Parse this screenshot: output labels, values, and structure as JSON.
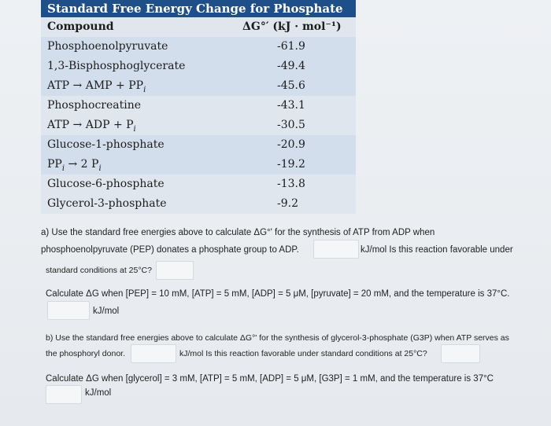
{
  "table": {
    "title": "Standard Free Energy Change for Phosphate Hydrolysis",
    "col_compound": "Compound",
    "col_value": "ΔG°′ (kJ · mol⁻¹)",
    "rows": [
      {
        "compound": "Phosphoenolpyruvate",
        "value": "-61.9"
      },
      {
        "compound": "1,3-Bisphosphoglycerate",
        "value": "-49.4"
      },
      {
        "compound": "ATP → AMP + PP",
        "sub": "i",
        "value": "-45.6"
      },
      {
        "compound": "Phosphocreatine",
        "value": "-43.1"
      },
      {
        "compound": "ATP → ADP + P",
        "sub": "i",
        "value": "-30.5"
      },
      {
        "compound": "Glucose-1-phosphate",
        "value": "-20.9"
      },
      {
        "compound": "PP",
        "sub": "i",
        "rest": " → 2 P",
        "sub2": "i",
        "value": "-19.2"
      },
      {
        "compound": "Glucose-6-phosphate",
        "value": "-13.8"
      },
      {
        "compound": "Glycerol-3-phosphate",
        "value": "-9.2"
      }
    ]
  },
  "question_a": {
    "line1": "a) Use the standard free energies above to calculate ΔG°' for the synthesis of ATP from ADP when",
    "line2": "phosphoenolpyruvate (PEP) donates a phosphate group to ADP.",
    "line2_unit": "kJ/mol Is this reaction favorable under",
    "line3": "standard conditions at 25°C?",
    "line4": "Calculate ΔG when [PEP] = 10 mM, [ATP] = 5 mM, [ADP] = 5 μM, [pyruvate] = 20 mM, and the temperature is 37°C.",
    "line5": "kJ/mol"
  },
  "question_b": {
    "line1": "b) Use the standard free energies above to calculate ΔG°' for the synthesis of glycerol-3-phosphate (G3P) when ATP serves as",
    "line2a": "the phosphoryl donor.",
    "line2b": "kJ/mol Is this reaction favorable under standard conditions at 25°C?",
    "line3": "Calculate ΔG when [glycerol] = 3 mM, [ATP] = 5 mM, [ADP] = 5 μM, [G3P] = 1 mM, and the temperature is 37°C",
    "line4": "kJ/mol"
  }
}
